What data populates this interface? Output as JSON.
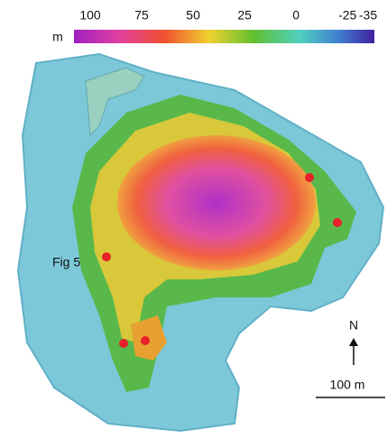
{
  "colorbar": {
    "unit": "m",
    "ticks": [
      100,
      75,
      50,
      25,
      0,
      -25,
      -35
    ]
  },
  "annotations": {
    "figure_label": "Fig 5",
    "north": "N",
    "scale": "100 m"
  }
}
